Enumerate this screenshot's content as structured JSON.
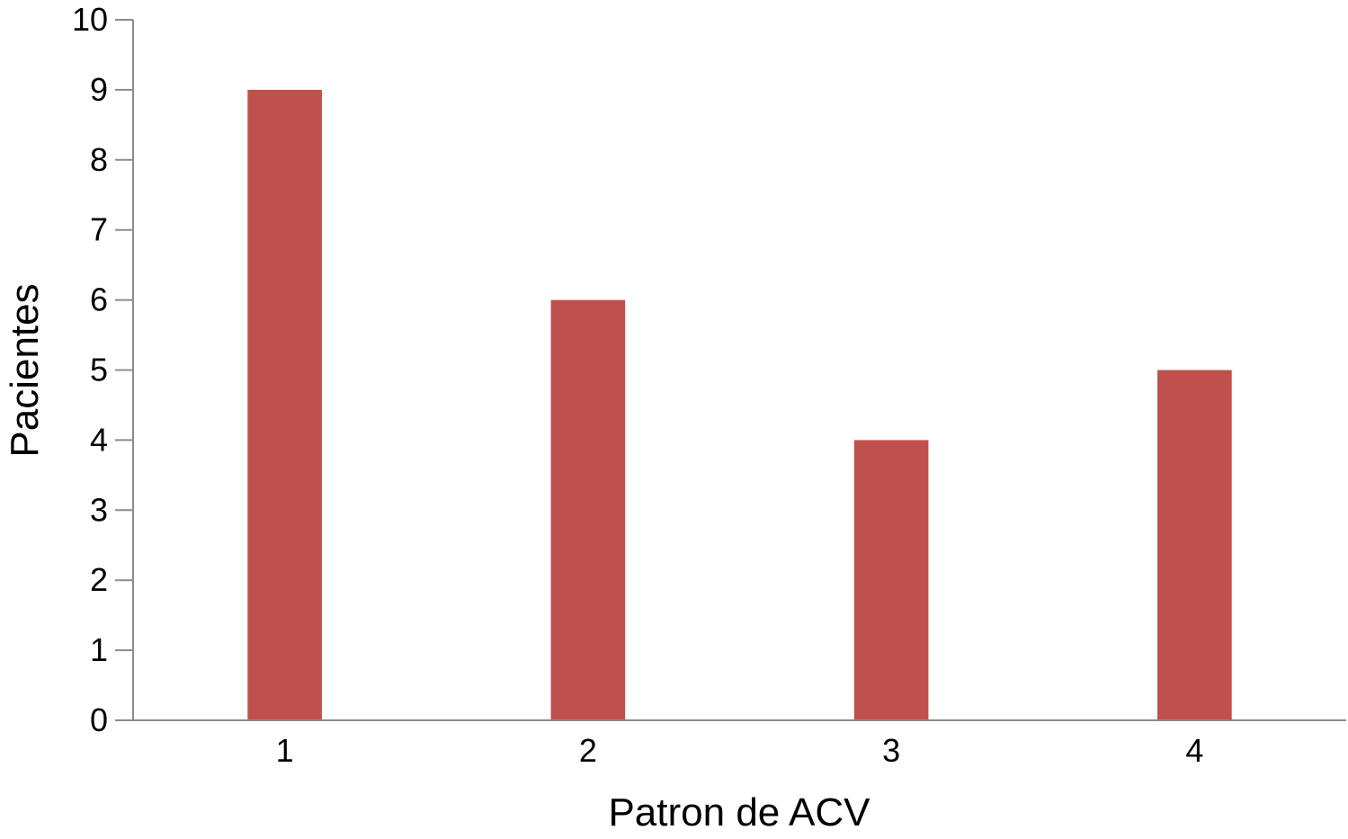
{
  "chart_data": {
    "type": "bar",
    "categories": [
      "1",
      "2",
      "3",
      "4"
    ],
    "values": [
      9,
      6,
      4,
      5
    ],
    "xlabel": "Patron de ACV",
    "ylabel": "Pacientes",
    "ylim": [
      0,
      10
    ],
    "yticks": [
      "0",
      "1",
      "2",
      "3",
      "4",
      "5",
      "6",
      "7",
      "8",
      "9",
      "10"
    ],
    "grid": false,
    "legend": "none",
    "bar_color": "#c0504d",
    "axis_color": "#8c8c8c"
  }
}
